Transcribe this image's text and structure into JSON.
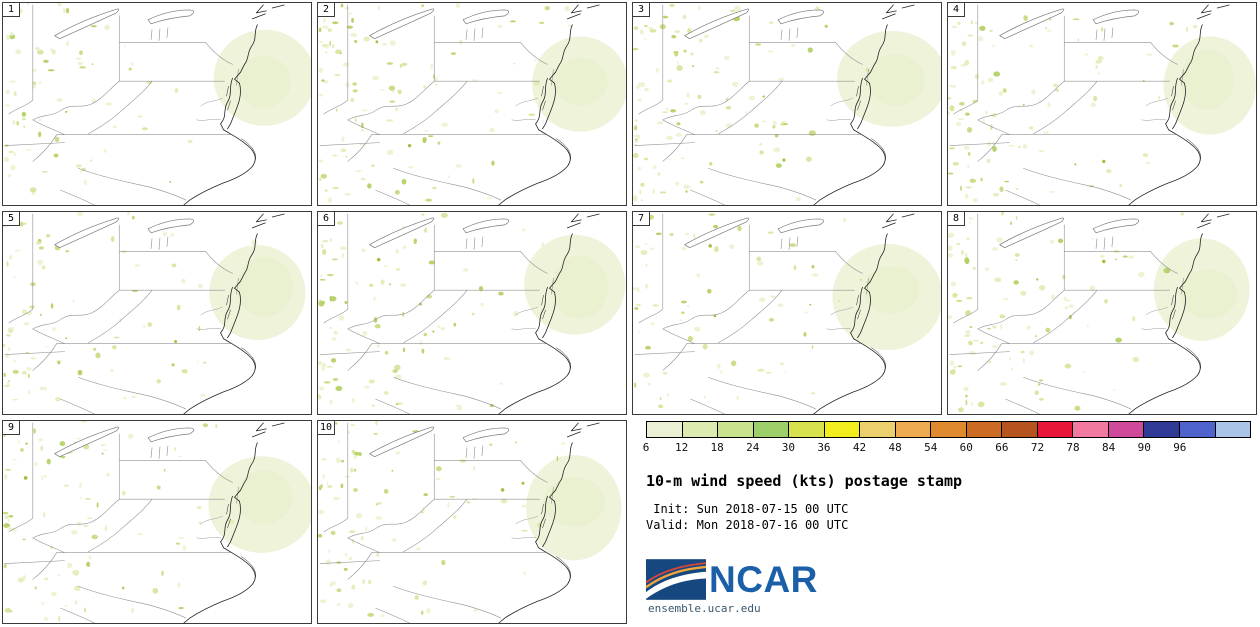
{
  "panels": [
    {
      "label": "1"
    },
    {
      "label": "2"
    },
    {
      "label": "3"
    },
    {
      "label": "4"
    },
    {
      "label": "5"
    },
    {
      "label": "6"
    },
    {
      "label": "7"
    },
    {
      "label": "8"
    },
    {
      "label": "9"
    },
    {
      "label": "10"
    }
  ],
  "legend": {
    "ticks": [
      "6",
      "12",
      "18",
      "24",
      "30",
      "36",
      "42",
      "48",
      "54",
      "60",
      "66",
      "72",
      "78",
      "84",
      "90",
      "96"
    ],
    "colors": [
      "#eaf0d4",
      "#dcebb0",
      "#c8e28e",
      "#9ccf6a",
      "#d8e24e",
      "#f2ee1e",
      "#ecd06e",
      "#edaa4e",
      "#e08a30",
      "#cc6b24",
      "#b5541e",
      "#e8173a",
      "#f2799f",
      "#cf4a9b",
      "#2e3a96",
      "#4f63cc",
      "#a9c4e6"
    ],
    "title": "10-m wind speed (kts) postage stamp",
    "init_line": " Init: Sun 2018-07-15 00 UTC",
    "valid_line": "Valid: Mon 2018-07-16 00 UTC",
    "logo_text": "NCAR",
    "footer": "ensemble.ucar.edu"
  }
}
